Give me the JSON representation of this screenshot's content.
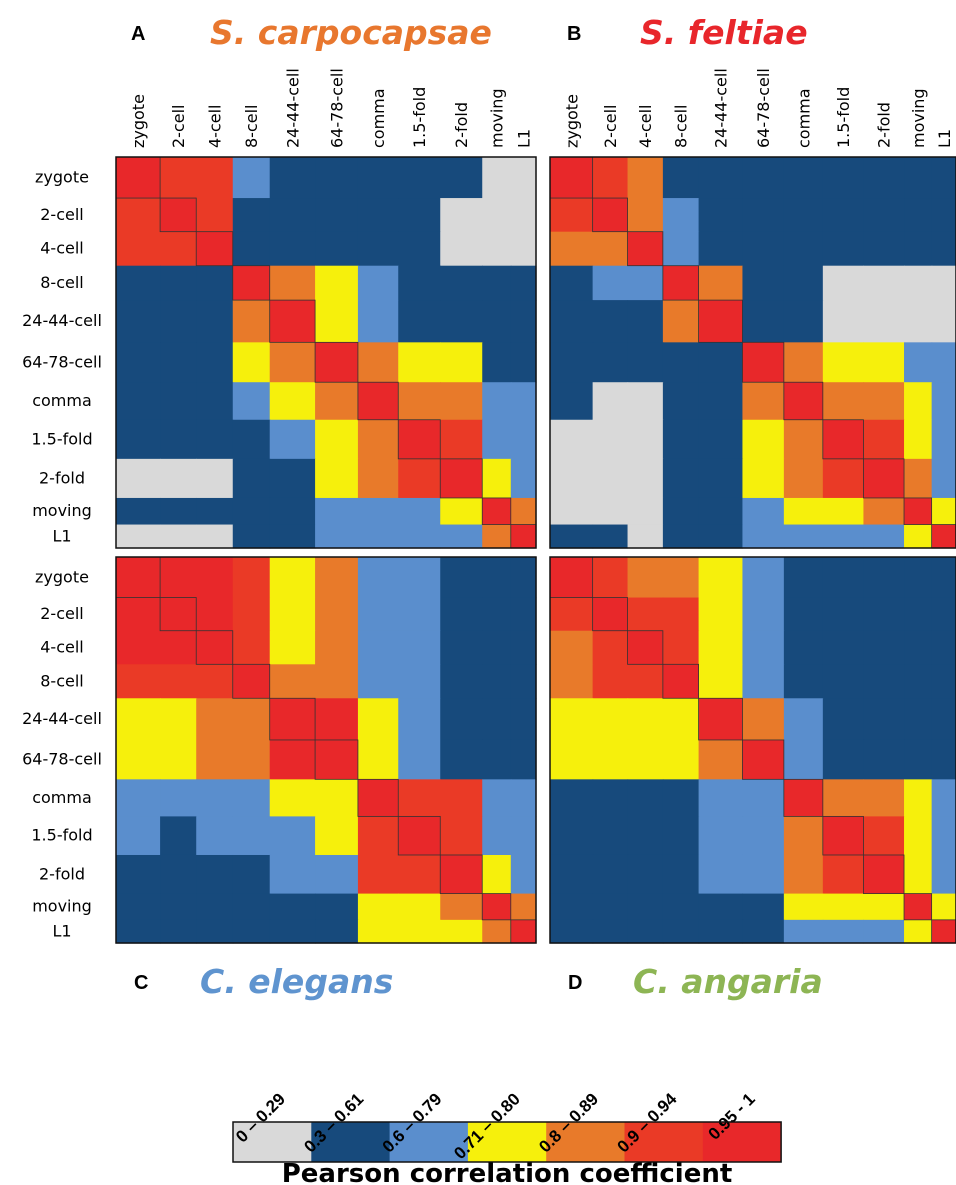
{
  "chart_data": {
    "type": "heatmap",
    "stages": [
      "zygote",
      "2-cell",
      "4-cell",
      "8-cell",
      "24-44-cell",
      "64-78-cell",
      "comma",
      "1.5-fold",
      "2-fold",
      "moving",
      "L1"
    ],
    "panels": [
      {
        "letter": "A",
        "species": "S. carpocapsae",
        "color": "#e8772e",
        "col_labels": [
          "zygote",
          "2-cell",
          "4-cell",
          "8-cell",
          "24-44-cell",
          "64-78-cell",
          "comma",
          "1.5-fold",
          "2-fold",
          "moving",
          "L1"
        ],
        "row_labels": [
          "zygote",
          "2-cell",
          "4-cell",
          "8-cell",
          "24-44-cell",
          "64-78-cell",
          "comma",
          "1.5-fold",
          "2-fold",
          "moving",
          "L1"
        ],
        "blocks": [
          [
            6,
            5,
            5,
            2,
            1,
            1,
            1,
            1,
            1,
            0,
            0
          ],
          [
            5,
            6,
            5,
            1,
            1,
            1,
            1,
            1,
            0,
            0,
            0
          ],
          [
            5,
            5,
            6,
            1,
            1,
            1,
            1,
            1,
            0,
            0,
            0
          ],
          [
            1,
            1,
            1,
            6,
            4,
            3,
            2,
            1,
            1,
            1,
            1
          ],
          [
            1,
            1,
            1,
            4,
            6,
            3,
            2,
            1,
            1,
            1,
            1
          ],
          [
            1,
            1,
            1,
            3,
            4,
            6,
            4,
            3,
            3,
            1,
            1
          ],
          [
            1,
            1,
            1,
            2,
            3,
            4,
            6,
            4,
            4,
            2,
            2
          ],
          [
            1,
            1,
            1,
            1,
            2,
            3,
            4,
            6,
            5,
            2,
            2
          ],
          [
            0,
            0,
            0,
            1,
            1,
            3,
            4,
            5,
            6,
            3,
            2
          ],
          [
            1,
            1,
            1,
            1,
            1,
            2,
            2,
            2,
            3,
            6,
            4
          ],
          [
            0,
            0,
            0,
            1,
            1,
            2,
            2,
            2,
            2,
            4,
            6
          ]
        ]
      },
      {
        "letter": "B",
        "species": "S. feltiae",
        "color": "#e8262b",
        "col_labels": [
          "zygote",
          "2-cell",
          "4-cell",
          "8-cell",
          "24-44-cell",
          "64-78-cell",
          "comma",
          "1.5-fold",
          "2-fold",
          "moving",
          "L1"
        ],
        "row_labels": [],
        "blocks": [
          [
            6,
            5,
            4,
            1,
            1,
            1,
            1,
            1,
            1,
            1,
            1
          ],
          [
            5,
            6,
            4,
            2,
            1,
            1,
            1,
            1,
            1,
            1,
            1
          ],
          [
            4,
            4,
            6,
            2,
            1,
            1,
            1,
            1,
            1,
            1,
            1
          ],
          [
            1,
            2,
            2,
            6,
            4,
            1,
            1,
            0,
            0,
            0,
            0
          ],
          [
            1,
            1,
            1,
            4,
            6,
            1,
            1,
            0,
            0,
            0,
            0
          ],
          [
            1,
            1,
            1,
            1,
            1,
            6,
            4,
            3,
            3,
            2,
            2
          ],
          [
            1,
            0,
            0,
            1,
            1,
            4,
            6,
            4,
            4,
            3,
            2
          ],
          [
            0,
            0,
            0,
            1,
            1,
            3,
            4,
            6,
            5,
            3,
            2
          ],
          [
            0,
            0,
            0,
            1,
            1,
            3,
            4,
            5,
            6,
            4,
            2
          ],
          [
            0,
            0,
            0,
            1,
            1,
            2,
            3,
            3,
            4,
            6,
            3
          ],
          [
            1,
            1,
            0,
            1,
            1,
            2,
            2,
            2,
            2,
            3,
            6
          ]
        ]
      },
      {
        "letter": "C",
        "species": "C. elegans",
        "color": "#5f94cf",
        "col_labels": [],
        "row_labels": [
          "zygote",
          "2-cell",
          "4-cell",
          "8-cell",
          "24-44-cell",
          "64-78-cell",
          "comma",
          "1.5-fold",
          "2-fold",
          "moving",
          "L1"
        ],
        "blocks": [
          [
            6,
            6,
            6,
            5,
            3,
            4,
            2,
            2,
            1,
            1,
            1
          ],
          [
            6,
            6,
            6,
            5,
            3,
            4,
            2,
            2,
            1,
            1,
            1
          ],
          [
            6,
            6,
            6,
            5,
            3,
            4,
            2,
            2,
            1,
            1,
            1
          ],
          [
            5,
            5,
            5,
            6,
            4,
            4,
            2,
            2,
            1,
            1,
            1
          ],
          [
            3,
            3,
            4,
            4,
            6,
            6,
            3,
            2,
            1,
            1,
            1
          ],
          [
            3,
            3,
            4,
            4,
            6,
            6,
            3,
            2,
            1,
            1,
            1
          ],
          [
            2,
            2,
            2,
            2,
            3,
            3,
            6,
            5,
            5,
            2,
            2
          ],
          [
            2,
            1,
            2,
            2,
            2,
            3,
            5,
            6,
            5,
            2,
            2
          ],
          [
            1,
            1,
            1,
            1,
            2,
            2,
            5,
            5,
            6,
            3,
            2
          ],
          [
            1,
            1,
            1,
            1,
            1,
            1,
            3,
            3,
            4,
            6,
            4
          ],
          [
            1,
            1,
            1,
            1,
            1,
            1,
            3,
            3,
            3,
            4,
            6
          ]
        ]
      },
      {
        "letter": "D",
        "species": "C. angaria",
        "color": "#8db554",
        "col_labels": [],
        "row_labels": [],
        "blocks": [
          [
            6,
            5,
            4,
            4,
            3,
            2,
            1,
            1,
            1,
            1,
            1
          ],
          [
            5,
            6,
            5,
            5,
            3,
            2,
            1,
            1,
            1,
            1,
            1
          ],
          [
            4,
            5,
            6,
            5,
            3,
            2,
            1,
            1,
            1,
            1,
            1
          ],
          [
            4,
            5,
            5,
            6,
            3,
            2,
            1,
            1,
            1,
            1,
            1
          ],
          [
            3,
            3,
            3,
            3,
            6,
            4,
            2,
            1,
            1,
            1,
            1
          ],
          [
            3,
            3,
            3,
            3,
            4,
            6,
            2,
            1,
            1,
            1,
            1
          ],
          [
            1,
            1,
            1,
            1,
            2,
            2,
            6,
            4,
            4,
            3,
            2
          ],
          [
            1,
            1,
            1,
            1,
            2,
            2,
            4,
            6,
            5,
            3,
            2
          ],
          [
            1,
            1,
            1,
            1,
            2,
            2,
            4,
            5,
            6,
            3,
            2
          ],
          [
            1,
            1,
            1,
            1,
            1,
            1,
            3,
            3,
            3,
            6,
            3
          ],
          [
            1,
            1,
            1,
            1,
            1,
            1,
            2,
            2,
            2,
            3,
            6
          ]
        ]
      }
    ],
    "colorscale": {
      "title": "Pearson correlation coefficient",
      "bins": [
        {
          "label": "0 – 0.29",
          "color": "#d9d9d9"
        },
        {
          "label": "0.3 – 0.61",
          "color": "#174a7c"
        },
        {
          "label": "0.6 – 0.79",
          "color": "#5a8ecd"
        },
        {
          "label": "0.71 – 0.80",
          "color": "#f6f00c"
        },
        {
          "label": "0.8 – 0.89",
          "color": "#e87a2a"
        },
        {
          "label": "0.9 – 0.94",
          "color": "#ea3a26"
        },
        {
          "label": "0.95 - 1",
          "color": "#e8282a"
        }
      ]
    }
  }
}
